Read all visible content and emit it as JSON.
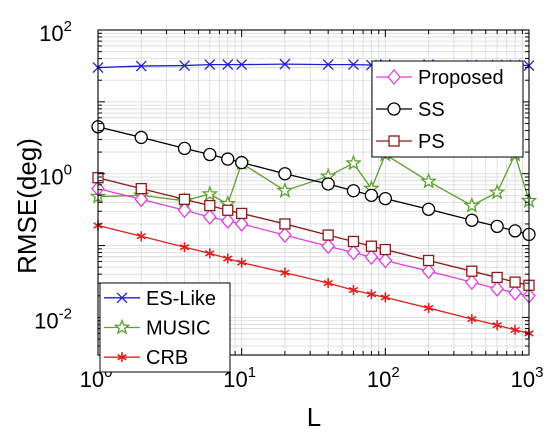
{
  "chart_data": {
    "type": "line",
    "xlabel": "L",
    "ylabel": "RMSE(deg)",
    "xscale": "log",
    "yscale": "log",
    "xlim": [
      1,
      1000
    ],
    "ylim": [
      0.003,
      100
    ],
    "grid": true,
    "x_ticks": [
      {
        "base": "10",
        "exp": "0"
      },
      {
        "base": "10",
        "exp": "1"
      },
      {
        "base": "10",
        "exp": "2"
      },
      {
        "base": "10",
        "exp": "3"
      }
    ],
    "y_ticks": [
      {
        "base": "10",
        "exp": "-2"
      },
      {
        "base": "10",
        "exp": "0"
      },
      {
        "base": "10",
        "exp": "2"
      }
    ],
    "x": [
      1,
      2,
      4,
      6,
      8,
      10,
      20,
      40,
      60,
      80,
      100,
      200,
      400,
      600,
      800,
      1000
    ],
    "legends": [
      {
        "position": "top-right",
        "entries": [
          "Proposed",
          "SS",
          "PS"
        ]
      },
      {
        "position": "bottom-left",
        "entries": [
          "ES-Like",
          "MUSIC",
          "CRB"
        ]
      }
    ],
    "series": [
      {
        "name": "ES-Like",
        "color": "#1f1fcf",
        "marker": "x",
        "values": [
          30,
          31.5,
          32,
          33,
          33,
          33,
          33.5,
          33,
          33,
          32.5,
          33,
          33,
          32.5,
          32.5,
          32.5,
          32
        ]
      },
      {
        "name": "MUSIC",
        "color": "#5aa02c",
        "marker": "star",
        "values": [
          0.48,
          0.5,
          0.42,
          0.52,
          0.38,
          1.4,
          0.58,
          0.92,
          1.4,
          0.62,
          1.85,
          0.78,
          0.36,
          0.55,
          1.85,
          0.42
        ]
      },
      {
        "name": "CRB",
        "color": "#e0201e",
        "marker": "asterisk",
        "values": [
          0.19,
          0.135,
          0.095,
          0.078,
          0.066,
          0.058,
          0.042,
          0.03,
          0.024,
          0.021,
          0.019,
          0.0135,
          0.0095,
          0.0078,
          0.0067,
          0.006
        ]
      },
      {
        "name": "Proposed",
        "color": "#e040e0",
        "marker": "diamond",
        "values": [
          0.62,
          0.44,
          0.31,
          0.25,
          0.22,
          0.2,
          0.14,
          0.098,
          0.08,
          0.069,
          0.062,
          0.044,
          0.031,
          0.025,
          0.022,
          0.02
        ]
      },
      {
        "name": "SS",
        "color": "#000000",
        "marker": "circle",
        "values": [
          4.5,
          3.2,
          2.25,
          1.85,
          1.6,
          1.43,
          1.0,
          0.72,
          0.58,
          0.5,
          0.45,
          0.32,
          0.225,
          0.185,
          0.16,
          0.143
        ]
      },
      {
        "name": "PS",
        "color": "#8b1a1a",
        "marker": "square",
        "values": [
          0.88,
          0.62,
          0.44,
          0.36,
          0.31,
          0.28,
          0.2,
          0.14,
          0.114,
          0.098,
          0.088,
          0.062,
          0.044,
          0.036,
          0.031,
          0.028
        ]
      }
    ]
  }
}
